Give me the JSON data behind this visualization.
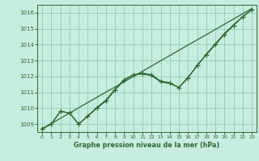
{
  "x": [
    0,
    1,
    2,
    3,
    4,
    5,
    6,
    7,
    8,
    9,
    10,
    11,
    12,
    13,
    14,
    15,
    16,
    17,
    18,
    19,
    20,
    21,
    22,
    23
  ],
  "pressure_markers": [
    1008.7,
    1009.0,
    1009.8,
    1009.7,
    1009.0,
    1009.5,
    1010.0,
    1010.45,
    1011.15,
    1011.75,
    1012.1,
    1012.2,
    1012.1,
    1011.7,
    1011.6,
    1011.3,
    1011.9,
    1012.7,
    1013.35,
    1014.0,
    1014.65,
    1015.2,
    1015.75,
    1016.2
  ],
  "pressure_smooth": [
    1008.7,
    1009.0,
    1009.8,
    1009.7,
    1009.0,
    1009.5,
    1010.05,
    1010.5,
    1011.2,
    1011.8,
    1012.1,
    1012.15,
    1012.05,
    1011.65,
    1011.55,
    1011.3,
    1011.95,
    1012.65,
    1013.4,
    1014.05,
    1014.7,
    1015.25,
    1015.75,
    1016.2
  ],
  "pressure_linear": [
    1008.7,
    1009.03,
    1009.36,
    1009.69,
    1010.02,
    1010.35,
    1010.68,
    1011.01,
    1011.33,
    1011.66,
    1011.99,
    1012.32,
    1012.65,
    1012.98,
    1013.31,
    1013.64,
    1013.97,
    1014.3,
    1014.62,
    1014.95,
    1015.28,
    1015.61,
    1015.94,
    1016.27
  ],
  "line_color": "#2d6a2d",
  "bg_color": "#c8ece0",
  "grid_color": "#88c8a8",
  "xlabel": "Graphe pression niveau de la mer (hPa)",
  "ylim": [
    1008.5,
    1016.5
  ],
  "xlim": [
    -0.5,
    23.5
  ],
  "yticks": [
    1009,
    1010,
    1011,
    1012,
    1013,
    1014,
    1015,
    1016
  ],
  "xticks": [
    0,
    1,
    2,
    3,
    4,
    5,
    6,
    7,
    8,
    9,
    10,
    11,
    12,
    13,
    14,
    15,
    16,
    17,
    18,
    19,
    20,
    21,
    22,
    23
  ]
}
